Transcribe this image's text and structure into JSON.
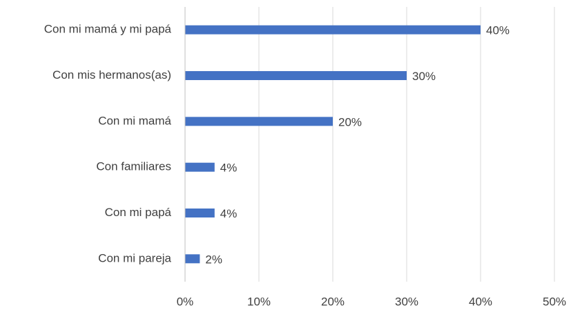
{
  "chart_data": {
    "type": "hbar",
    "categories": [
      "Con mi mamá y mi papá",
      "Con mis hermanos(as)",
      "Con mi mamá",
      "Con familiares",
      "Con mi papá",
      "Con mi pareja"
    ],
    "values": [
      40,
      30,
      20,
      4,
      4,
      2
    ],
    "value_labels": [
      "40%",
      "30%",
      "20%",
      "4%",
      "4%",
      "2%"
    ],
    "color": "#4472c4",
    "xlim": [
      0,
      50
    ],
    "xticks": [
      {
        "value": 0,
        "label": "0%"
      },
      {
        "value": 10,
        "label": "10%"
      },
      {
        "value": 20,
        "label": "20%"
      },
      {
        "value": 30,
        "label": "30%"
      },
      {
        "value": 40,
        "label": "40%"
      },
      {
        "value": 50,
        "label": "50%"
      }
    ],
    "grid": true
  }
}
